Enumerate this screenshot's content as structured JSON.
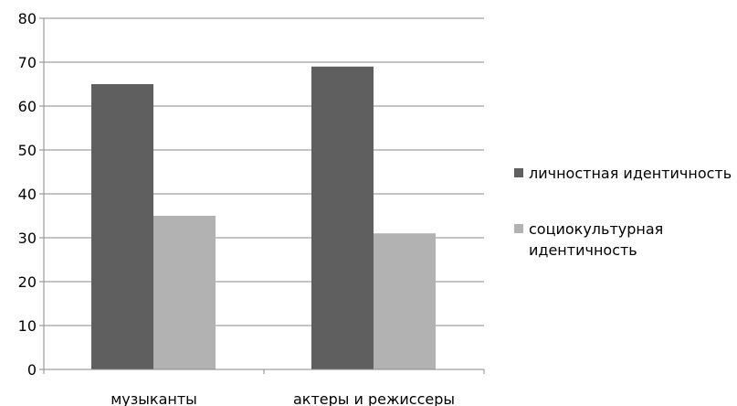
{
  "chart_data": {
    "type": "bar",
    "title": "",
    "xlabel": "",
    "ylabel": "",
    "categories": [
      "музыканты",
      "актеры и режиссеры"
    ],
    "series": [
      {
        "name": "личностная идентичность",
        "values": [
          65,
          69
        ],
        "color": "#5f5f5f"
      },
      {
        "name": "социокультурная идентичность",
        "values": [
          35,
          31
        ],
        "color": "#b2b2b2"
      }
    ],
    "ylim": [
      0,
      80
    ],
    "yticks": [
      0,
      10,
      20,
      30,
      40,
      50,
      60,
      70,
      80
    ],
    "grid": true,
    "legend_position": "right"
  }
}
